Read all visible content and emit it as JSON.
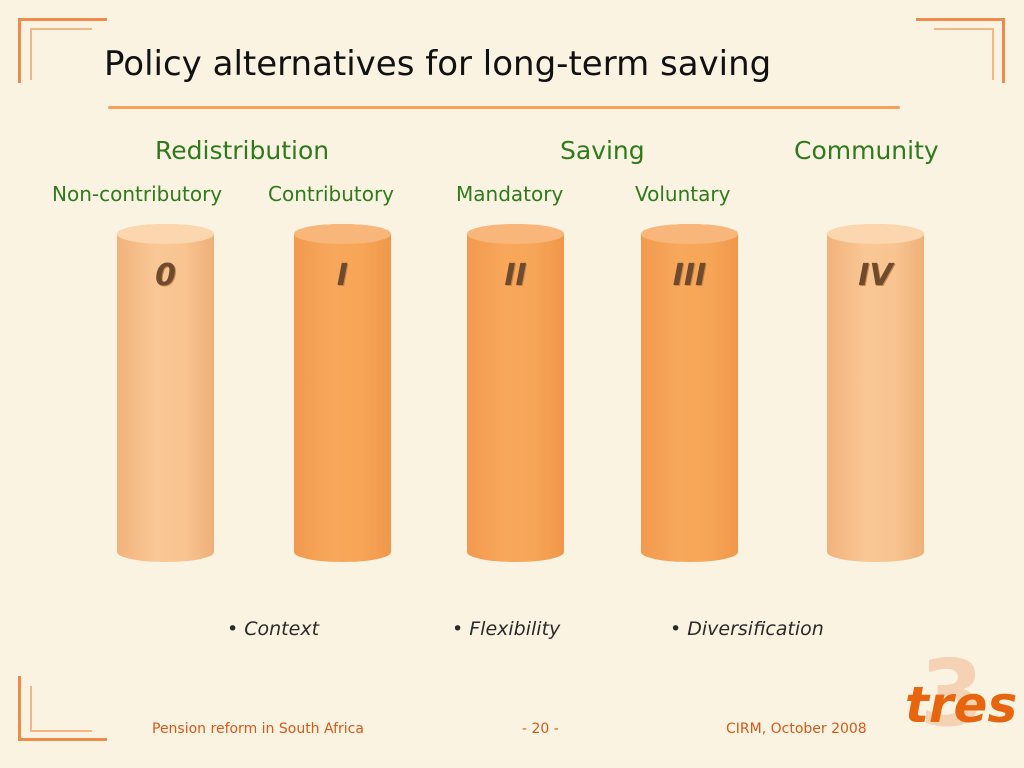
{
  "title": "Policy alternatives for long-term saving",
  "categories": {
    "redistribution": "Redistribution",
    "saving": "Saving",
    "community": "Community"
  },
  "subcategories": {
    "non_contributory": "Non-contributory",
    "contributory": "Contributory",
    "mandatory": "Mandatory",
    "voluntary": "Voluntary"
  },
  "pillars": [
    "0",
    "I",
    "II",
    "III",
    "IV"
  ],
  "bullets": {
    "context": "• Context",
    "flexibility": "• Flexibility",
    "diversification": "• Diversification"
  },
  "footer": {
    "left": "Pension reform in South Africa",
    "page": "- 20 -",
    "right": "CIRM, October 2008"
  },
  "logo": {
    "text": "tres",
    "mark": "3"
  },
  "colors": {
    "accent": "#f08a4b",
    "heading_green": "#2f7a1c",
    "pillar_light": "#f9c795",
    "pillar_dark": "#f8a85b",
    "footer_text": "#d55a17"
  }
}
